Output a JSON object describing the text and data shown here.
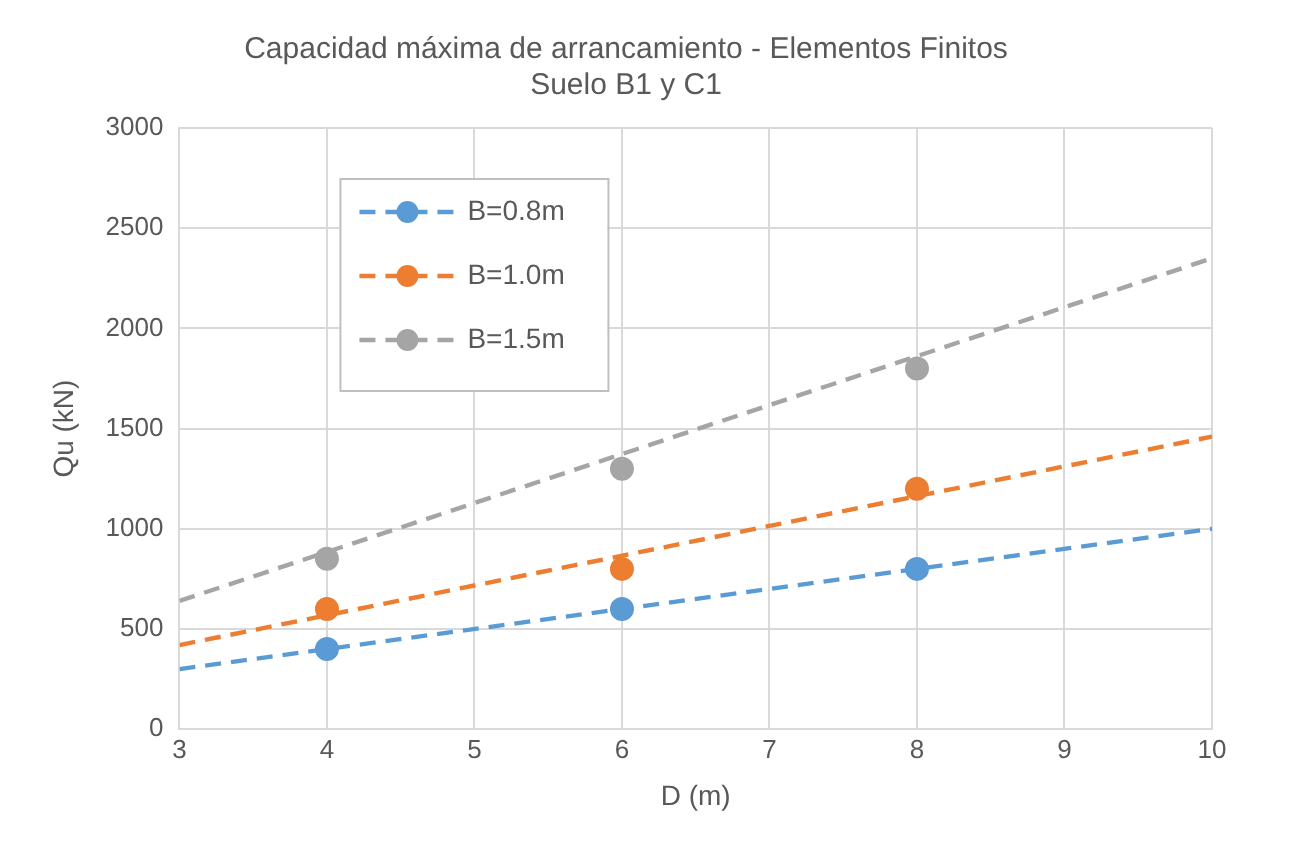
{
  "chart_data": {
    "type": "scatter",
    "title": "Capacidad máxima de arrancamiento - Elementos Finitos\nSuelo B1 y C1",
    "xlabel": "D (m)",
    "ylabel": "Qu (kN)",
    "xlim": [
      3,
      10
    ],
    "xticks": [
      3,
      4,
      5,
      6,
      7,
      8,
      9,
      10
    ],
    "ylim": [
      0,
      3000
    ],
    "yticks": [
      0,
      500,
      1000,
      1500,
      2000,
      2500,
      3000
    ],
    "grid": true,
    "legend": "top left",
    "series": [
      {
        "name": "B=0.8m",
        "marker": "circle",
        "color": "#5b9bd5",
        "x": [
          4,
          6,
          8
        ],
        "values": [
          400,
          600,
          800
        ]
      },
      {
        "name": "B=1.0m",
        "marker": "circle",
        "color": "#ed7d31",
        "x": [
          4,
          6,
          8
        ],
        "values": [
          600,
          800,
          1200
        ]
      },
      {
        "name": "B=1.5m",
        "marker": "circle",
        "color": "#a5a5a5",
        "x": [
          4,
          6,
          8
        ],
        "values": [
          850,
          1300,
          1800
        ]
      },
      {
        "type": "line",
        "line_style": "dashed",
        "color": "#5b9bd5",
        "x": [
          3,
          10
        ],
        "values": [
          300,
          1000
        ]
      },
      {
        "type": "line",
        "line_style": "dashed",
        "color": "#ed7d31",
        "x": [
          3,
          10
        ],
        "values": [
          420,
          1460
        ]
      },
      {
        "type": "line",
        "line_style": "dashed",
        "color": "#a5a5a5",
        "x": [
          3,
          10
        ],
        "values": [
          640,
          2350
        ]
      }
    ]
  }
}
